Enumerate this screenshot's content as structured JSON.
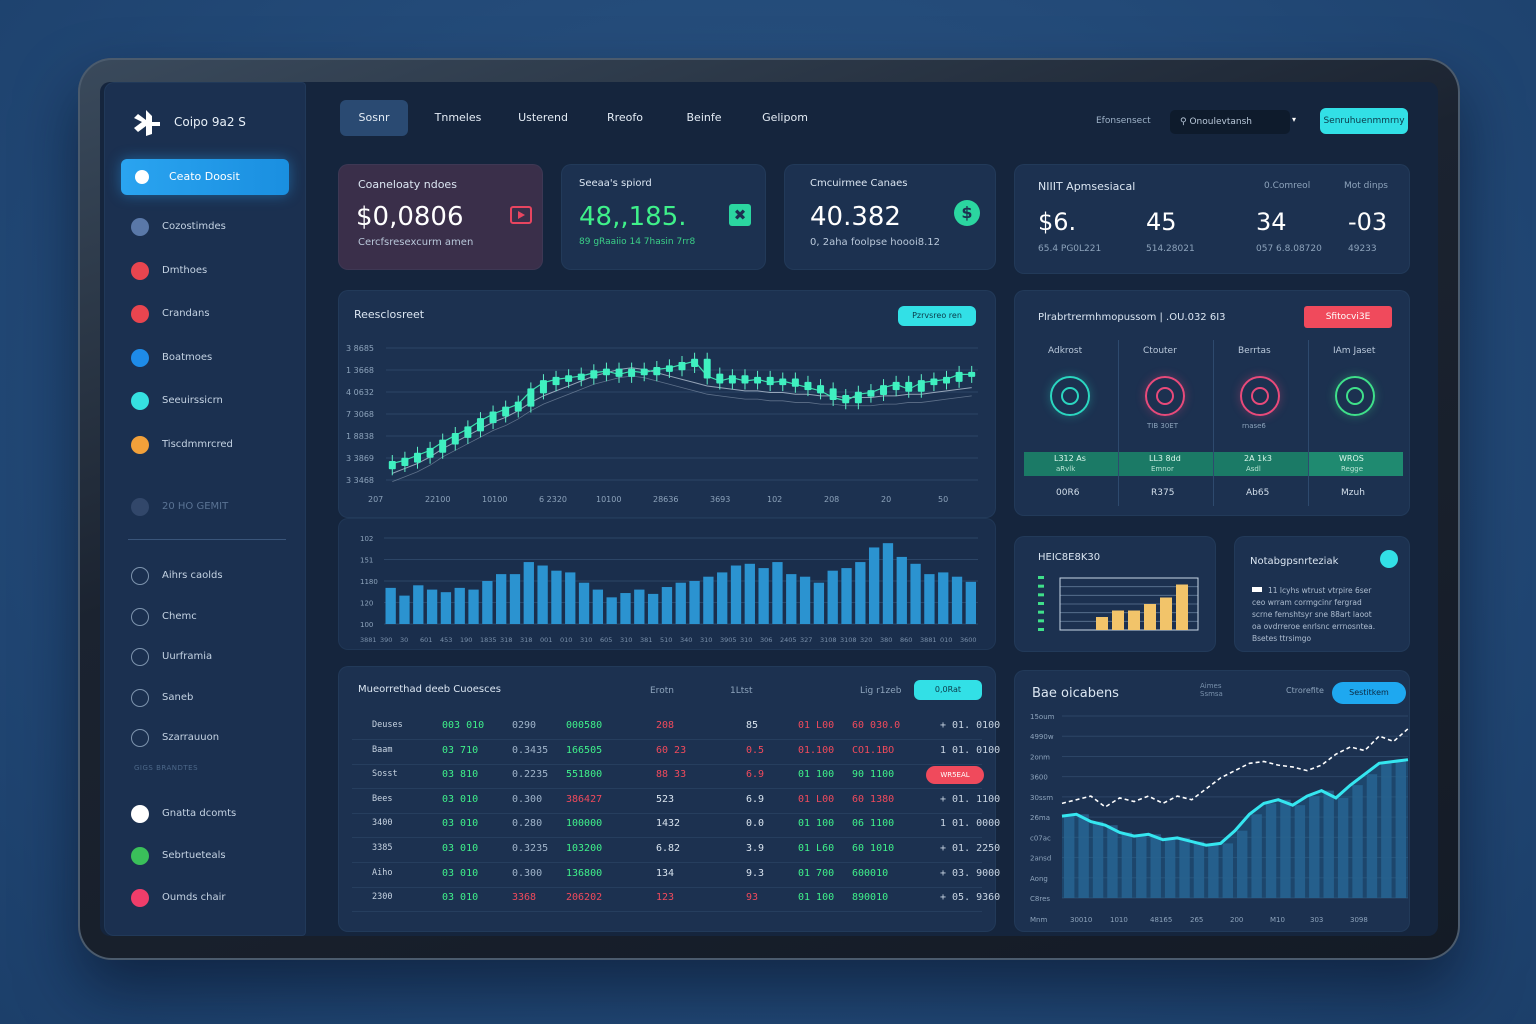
{
  "sidebar": {
    "brand": "Coipo 9a2 S",
    "active_item": "Ceato Doosit",
    "items": [
      {
        "label": "Cozostimdes",
        "color": "#5a78a8"
      },
      {
        "label": "Dmthoes",
        "color": "#e8454f"
      },
      {
        "label": "Crandans",
        "color": "#e8454f"
      },
      {
        "label": "Boatmoes",
        "color": "#1e8be8"
      },
      {
        "label": "Seeuirssicrn",
        "color": "#35e0e0"
      },
      {
        "label": "Tiscdmmrcred",
        "color": "#f2a03a"
      }
    ],
    "section_label": "20 HO GEMIT",
    "outline_items": [
      "Aihrs caolds",
      "Chemc",
      "Uurframia",
      "Saneb",
      "Szarrauuon"
    ],
    "faint_caption": "GIGS BRANDTES",
    "bottom_items": [
      {
        "label": "Gnatta dcomts",
        "color": "#ffffff"
      },
      {
        "label": "Sebrtueteals",
        "color": "#3ac05a"
      },
      {
        "label": "Oumds chair",
        "color": "#ef3d6a"
      }
    ]
  },
  "topnav": {
    "tabs": [
      "Sosnr",
      "Tnmeles",
      "Usterend",
      "Rreofo",
      "Beinfe",
      "Gelipom"
    ],
    "label": "Efonsensect",
    "search_value": "Onoulevtansh",
    "action_button": "Senruhuenmmrny"
  },
  "stats": [
    {
      "title": "Coaneloaty ndoes",
      "value": "$0,0806",
      "sub": "Cercfsresexcurm amen",
      "value_color": "#ffffff",
      "icon": "play-icon",
      "accent": "#e84560"
    },
    {
      "title": "Seeaa's spiord",
      "value": "48,,185.",
      "sub": "89 gRaaiio 14 7hasin   7rr8",
      "value_color": "#3ff08a",
      "icon": "x-box-icon",
      "accent": "#2bd6a0"
    },
    {
      "title": "Cmcuirmee Canaes",
      "value": "40.382",
      "sub": "0, 2aha foolpse hoooi8.12",
      "value_color": "#ffffff",
      "icon": "dollar-coin-icon",
      "accent": "#2bd6a0"
    }
  ],
  "metrics": {
    "title": "NIIIT Apmsesiacal",
    "col_labels": [
      "0.Comreol",
      "Mot dinps"
    ],
    "values": [
      {
        "value": "$6.",
        "sub": "65.4 PG0L221"
      },
      {
        "value": "45",
        "sub": "514.28021"
      },
      {
        "value": "34",
        "sub": "057 6.8.08720"
      },
      {
        "value": "-03",
        "sub": "49233"
      }
    ]
  },
  "main_chart": {
    "title": "Reesclosreet",
    "button": "Pzrvsreo ren",
    "y_ticks": [
      "3 8685",
      "1 3668",
      "4 0632",
      "7 3068",
      "1 8838",
      "3 3869",
      "3 3468"
    ],
    "x_ticks": [
      "207",
      "22100",
      "10100",
      "6 2320",
      "10100",
      "28636",
      "3693",
      "102",
      "208",
      "20",
      "50"
    ],
    "volume_y_ticks": [
      "102",
      "151",
      "1180",
      "120",
      "100"
    ],
    "volume_x_ticks": [
      "3881",
      "390",
      "30",
      "601",
      "453",
      "190",
      "1835",
      "318",
      "318",
      "001",
      "010",
      "310",
      "605",
      "310",
      "381",
      "510",
      "340",
      "310",
      "3905",
      "310",
      "306",
      "2405",
      "327",
      "3108",
      "3108",
      "320",
      "380",
      "860",
      "3881",
      "010",
      "3600"
    ]
  },
  "chart_data": [
    {
      "type": "line",
      "title": "Reesclosreet",
      "subtype": "candlestick",
      "x": [
        1,
        2,
        3,
        4,
        5,
        6,
        7,
        8,
        9,
        10,
        11,
        12,
        13,
        14,
        15,
        16,
        17,
        18,
        19,
        20,
        21,
        22,
        23,
        24,
        25,
        26,
        27,
        28,
        29,
        30,
        31,
        32,
        33,
        34,
        35,
        36,
        37,
        38,
        39,
        40,
        41,
        42,
        43,
        44,
        45,
        46,
        47
      ],
      "series": [
        {
          "values": [
            1.0,
            1.2,
            1.5,
            1.8,
            2.3,
            2.7,
            3.1,
            3.6,
            4.0,
            4.3,
            4.6,
            5.4,
            5.9,
            6.1,
            6.2,
            6.3,
            6.5,
            6.6,
            6.4,
            6.6,
            6.5,
            6.7,
            6.8,
            7.0,
            7.2,
            6.3,
            6.0,
            6.2,
            6.0,
            6.1,
            5.9,
            6.0,
            5.8,
            5.6,
            5.4,
            5.0,
            4.8,
            5.2,
            5.3,
            5.6,
            5.8,
            5.5,
            5.9,
            6.0,
            6.1,
            6.4,
            6.4
          ]
        }
      ],
      "ma_line": [
        1.0,
        1.3,
        1.6,
        2.0,
        2.5,
        2.9,
        3.3,
        3.7,
        4.1,
        4.4,
        4.8,
        5.3,
        5.7,
        6.0,
        6.3,
        6.6,
        6.9,
        7.1,
        7.3,
        7.4,
        7.3,
        7.1,
        6.9,
        6.7,
        6.5,
        6.3,
        6.2,
        6.1,
        6.0,
        6.0,
        5.9,
        5.9,
        5.8,
        5.8,
        5.7,
        5.7,
        5.6,
        5.6,
        5.6,
        5.7,
        5.7,
        5.8,
        5.8,
        5.9,
        6.0,
        6.1,
        6.2
      ],
      "ylim": [
        0,
        8
      ]
    },
    {
      "type": "bar",
      "title": "",
      "values": [
        42,
        33,
        45,
        40,
        37,
        42,
        40,
        50,
        58,
        58,
        72,
        68,
        62,
        60,
        48,
        40,
        31,
        36,
        40,
        35,
        43,
        48,
        50,
        55,
        60,
        68,
        70,
        65,
        72,
        58,
        55,
        48,
        62,
        65,
        72,
        89,
        94,
        78,
        70,
        58,
        60,
        55,
        49
      ],
      "ylim": [
        0,
        100
      ]
    },
    {
      "type": "bar",
      "title": "HEIC8E8K30",
      "values": [
        2,
        3,
        3,
        4,
        5,
        7
      ],
      "ylim": [
        0,
        8
      ]
    },
    {
      "type": "area",
      "title": "Bae oicabens",
      "y_ticks": [
        "15oum",
        "4990w",
        "2onm",
        "3600",
        "30ssm",
        "26ma",
        "c07ac",
        "2ansd",
        "Aong",
        "C8res"
      ],
      "x_ticks": [
        "Mnm",
        "30010",
        "1010",
        "48165",
        "265",
        "200",
        "M10",
        "303",
        "3098"
      ],
      "series": [
        {
          "name": "",
          "values": [
            4.5,
            4.6,
            4.2,
            4.0,
            3.6,
            3.4,
            3.5,
            3.2,
            3.3,
            3.1,
            2.9,
            3.0,
            3.7,
            4.6,
            5.2,
            5.4,
            5.1,
            5.6,
            5.9,
            5.5,
            6.2,
            6.8,
            7.4,
            7.5,
            7.6
          ]
        },
        {
          "name": "",
          "values": [
            5.2,
            5.4,
            5.6,
            5.0,
            5.5,
            5.3,
            5.6,
            5.2,
            5.6,
            5.4,
            6.0,
            6.6,
            7.0,
            7.4,
            7.5,
            7.3,
            7.2,
            7.0,
            7.3,
            7.9,
            8.3,
            8.1,
            8.9,
            8.6,
            9.3
          ]
        }
      ],
      "ylim": [
        0,
        10
      ]
    }
  ],
  "rings": {
    "title": "Plrabrtrermhmopussom | .OU.032 6I3",
    "button": "Sfitocvi3E",
    "columns": [
      {
        "label": "Adkrost",
        "icon": "link-ring-icon",
        "color": "#2bd6c0",
        "caption": "",
        "band1": "L312 As",
        "band2": "aRvlk",
        "foot": "00R6"
      },
      {
        "label": "Ctouter",
        "icon": "target-ring-icon",
        "color": "#e84a7a",
        "caption": "TIB 30ET",
        "band1": "LL3 8dd",
        "band2": "Emnor",
        "foot": "R375"
      },
      {
        "label": "Berrtas",
        "icon": "bolt-ring-icon",
        "color": "#e84a7a",
        "caption": "rnase6",
        "band1": "2A 1k3",
        "band2": "Asdl",
        "foot": "Ab65"
      },
      {
        "label": "IAm Jaset",
        "icon": "compass-ring-icon",
        "color": "#3fe08a",
        "caption": "",
        "band1": "WROS",
        "band2": "Regge",
        "foot": "Mzuh"
      }
    ]
  },
  "mini_bar": {
    "title": "HEIC8E8K30"
  },
  "notes": {
    "title": "Notabgpsnrteziak",
    "lines": [
      "11 lcyhs wtrust vtrpire 6ser",
      "ceo wrram cormgcinr fergrad",
      "scrne femshtsyr sne 88art laoot",
      "oa ovdrreroe enrlsnc errnosntea.",
      "Bsetes ttrsimgo"
    ]
  },
  "orders": {
    "title": "Mueorrethad deeb Cuoesces",
    "col_labels": [
      "Erotn",
      "1Ltst",
      "Lig r1zeb"
    ],
    "tag_button": "0,0Rat",
    "rows": [
      {
        "c0": "Deuses",
        "c1": "003 010",
        "c2": "0290",
        "c3": "000580",
        "c4": "208",
        "c5": "85",
        "c6": "01 L00",
        "c7": "60 030.0",
        "c8": "+ 01. 0100"
      },
      {
        "c0": "Baam",
        "c1": "03 710",
        "c2": "0.3435",
        "c3": "166505",
        "c4": "60 23",
        "c5": "0.5",
        "c6": "01.100",
        "c7": "CO1.1BO",
        "c8": "1 01. 0100"
      },
      {
        "c0": "Sosst",
        "c1": "03 810",
        "c2": "0.2235",
        "c3": "551800",
        "c4": "88 33",
        "c5": "6.9",
        "c6": "01 100",
        "c7": "90 1100",
        "c8": "WR5EAL"
      },
      {
        "c0": "Bees",
        "c1": "03 010",
        "c2": "0.300",
        "c3": "386427",
        "c4": "523",
        "c5": "6.9",
        "c6": "01 L00",
        "c7": "60 1380",
        "c8": "+ 01. 1100"
      },
      {
        "c0": "3400",
        "c1": "03 010",
        "c2": "0.280",
        "c3": "100000",
        "c4": "1432",
        "c5": "0.0",
        "c6": "01 100",
        "c7": "06 1100",
        "c8": "1 01. 0000"
      },
      {
        "c0": "3385",
        "c1": "03 010",
        "c2": "0.3235",
        "c3": "103200",
        "c4": "6.82",
        "c5": "3.9",
        "c6": "01 L60",
        "c7": "60 1010",
        "c8": "+ 01. 2250"
      },
      {
        "c0": "Aiho",
        "c1": "03 010",
        "c2": "0.300",
        "c3": "136800",
        "c4": "134",
        "c5": "9.3",
        "c6": "01 700",
        "c7": "600010",
        "c8": "+ 03. 9000"
      },
      {
        "c0": "2300",
        "c1": "03 010",
        "c2": "3368",
        "c3": "206202",
        "c4": "123",
        "c5": "93",
        "c6": "01 100",
        "c7": "890010",
        "c8": "+ 05. 9360"
      }
    ]
  },
  "area_panel": {
    "title": "Bae oicabens",
    "mini_label": "Aimes Ssmsa",
    "label2": "Ctrorefite",
    "button": "Sestitkem"
  },
  "colors": {
    "accent_cyan": "#32e0e6",
    "accent_blue": "#1e8fe8",
    "green": "#3ff08a",
    "red": "#f04a5c",
    "panel": "#1c3150"
  }
}
